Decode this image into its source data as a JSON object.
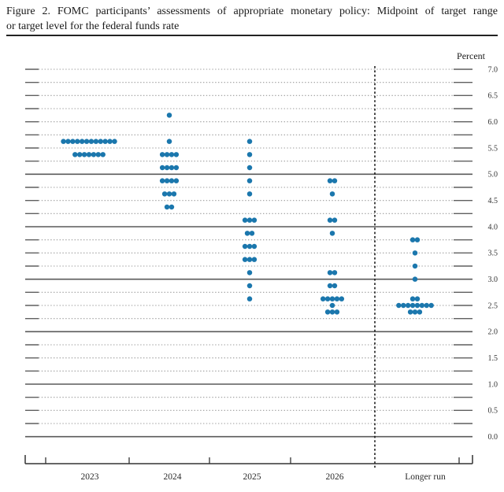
{
  "figure": {
    "title_line1": "Figure 2.  FOMC participants’ assessments of appropriate monetary policy:  Midpoint of target range",
    "title_line2": "or target level for the federal funds rate",
    "percent_label": "Percent"
  },
  "chart_data": {
    "type": "scatter",
    "title": "FOMC participants’ assessments of appropriate monetary policy: Midpoint of target range or target level for the federal funds rate",
    "ylabel": "Percent",
    "ylim": [
      0.0,
      7.0
    ],
    "grid_interval": 0.25,
    "label_interval": 0.5,
    "grid": "dotted horizontal lines every 0.25, solid lines at integers, dotted vertical separator before Longer run",
    "legend": "none",
    "dot_color": "#1b77ad",
    "y_axis": {
      "tick_labels": [
        "7.0",
        "6.5",
        "6.0",
        "5.5",
        "5.0",
        "4.5",
        "4.0",
        "3.5",
        "3.0",
        "2.5",
        "2.0",
        "1.5",
        "1.0",
        "0.5",
        "0.0"
      ],
      "solid_lines": [
        5.0,
        4.0,
        3.0,
        2.0,
        1.0,
        0.0
      ]
    },
    "categories": [
      "2023",
      "2024",
      "2025",
      "2026",
      "Longer run"
    ],
    "columns": [
      {
        "label": "2023",
        "dots": [
          {
            "rate": 5.625,
            "count": 12
          },
          {
            "rate": 5.375,
            "count": 7
          }
        ]
      },
      {
        "label": "2024",
        "dots": [
          {
            "rate": 6.125,
            "count": 1
          },
          {
            "rate": 5.625,
            "count": 1
          },
          {
            "rate": 5.375,
            "count": 4
          },
          {
            "rate": 5.125,
            "count": 4
          },
          {
            "rate": 4.875,
            "count": 4
          },
          {
            "rate": 4.625,
            "count": 3
          },
          {
            "rate": 4.375,
            "count": 2
          }
        ]
      },
      {
        "label": "2025",
        "dots": [
          {
            "rate": 5.625,
            "count": 1
          },
          {
            "rate": 5.375,
            "count": 1
          },
          {
            "rate": 5.125,
            "count": 1
          },
          {
            "rate": 4.875,
            "count": 1
          },
          {
            "rate": 4.625,
            "count": 1
          },
          {
            "rate": 4.125,
            "count": 3
          },
          {
            "rate": 3.875,
            "count": 2
          },
          {
            "rate": 3.625,
            "count": 3
          },
          {
            "rate": 3.375,
            "count": 3
          },
          {
            "rate": 3.125,
            "count": 1
          },
          {
            "rate": 2.875,
            "count": 1
          },
          {
            "rate": 2.625,
            "count": 1
          }
        ]
      },
      {
        "label": "2026",
        "dots": [
          {
            "rate": 4.875,
            "count": 2
          },
          {
            "rate": 4.625,
            "count": 1
          },
          {
            "rate": 4.125,
            "count": 2
          },
          {
            "rate": 3.875,
            "count": 1
          },
          {
            "rate": 3.125,
            "count": 2
          },
          {
            "rate": 2.875,
            "count": 2
          },
          {
            "rate": 2.625,
            "count": 5
          },
          {
            "rate": 2.5,
            "count": 1
          },
          {
            "rate": 2.375,
            "count": 3
          }
        ]
      },
      {
        "label": "Longer run",
        "dots": [
          {
            "rate": 3.75,
            "count": 2
          },
          {
            "rate": 3.5,
            "count": 1
          },
          {
            "rate": 3.25,
            "count": 1
          },
          {
            "rate": 3.0,
            "count": 1
          },
          {
            "rate": 2.625,
            "count": 2
          },
          {
            "rate": 2.5,
            "count": 8
          },
          {
            "rate": 2.375,
            "count": 3
          }
        ]
      }
    ]
  }
}
